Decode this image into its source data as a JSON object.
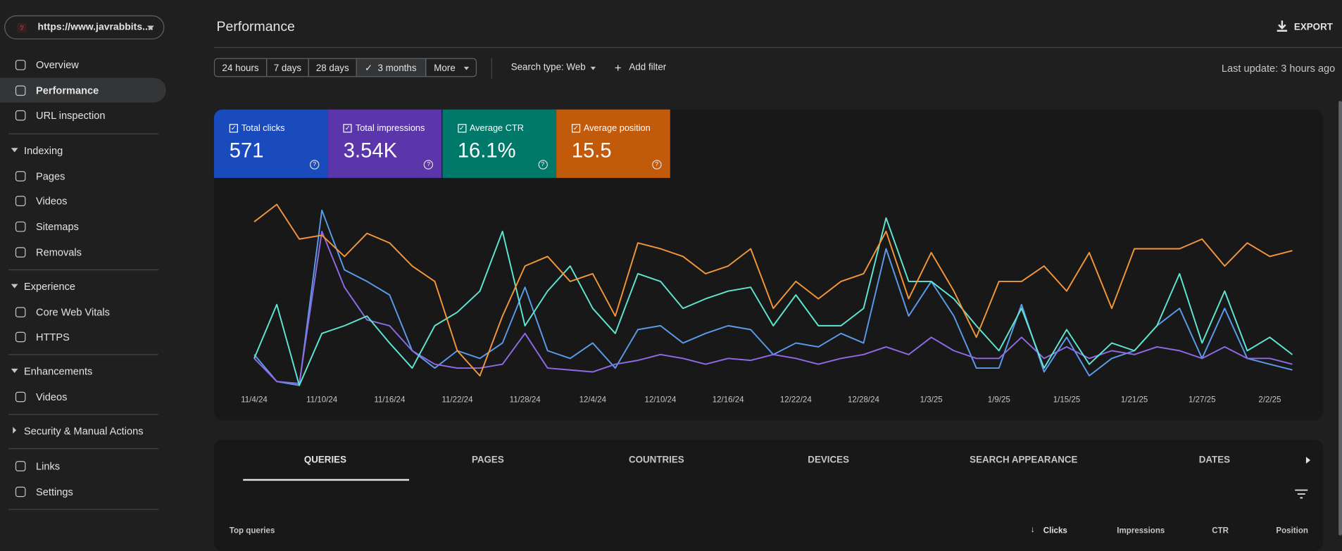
{
  "sidebar": {
    "property": "https://www.javrabbits....",
    "nav": [
      "Overview",
      "Performance",
      "URL inspection"
    ],
    "sections": [
      {
        "title": "Indexing",
        "items": [
          "Pages",
          "Videos",
          "Sitemaps",
          "Removals"
        ]
      },
      {
        "title": "Experience",
        "items": [
          "Core Web Vitals",
          "HTTPS"
        ]
      },
      {
        "title": "Enhancements",
        "items": [
          "Videos"
        ]
      },
      {
        "title": "Security & Manual Actions",
        "items": []
      }
    ],
    "footer_nav": [
      "Links",
      "Settings"
    ]
  },
  "header": {
    "title": "Performance",
    "export": "EXPORT"
  },
  "filters": {
    "ranges": [
      "24 hours",
      "7 days",
      "28 days",
      "3 months"
    ],
    "more": "More",
    "search_type": "Search type: Web",
    "add_filter": "Add filter",
    "last_update": "Last update: 3 hours ago"
  },
  "chart_data": {
    "type": "line",
    "ylim": [
      0,
      100
    ],
    "categories": [
      "11/4/24",
      null,
      null,
      "11/10/24",
      null,
      null,
      "11/16/24",
      null,
      null,
      "11/22/24",
      null,
      null,
      "11/28/24",
      null,
      null,
      "12/4/24",
      null,
      null,
      "12/10/24",
      null,
      null,
      "12/16/24",
      null,
      null,
      "12/22/24",
      null,
      null,
      "12/28/24",
      null,
      null,
      "1/3/25",
      null,
      null,
      "1/9/25",
      null,
      null,
      "1/15/25",
      null,
      null,
      "1/21/25",
      null,
      null,
      "1/27/25",
      null,
      null,
      "2/2/25",
      null
    ],
    "series": [
      {
        "name": "Total clicks",
        "summary": "571",
        "card_color": "#1a4bbd",
        "color": "#5a9bea",
        "values": [
          18,
          4,
          2,
          93,
          62,
          56,
          49,
          20,
          11,
          20,
          16,
          24,
          53,
          20,
          16,
          24,
          11,
          31,
          33,
          24,
          29,
          33,
          31,
          18,
          24,
          22,
          29,
          24,
          73,
          38,
          56,
          38,
          11,
          11,
          44,
          9,
          27,
          7,
          16,
          20,
          33,
          42,
          16,
          42,
          16,
          13,
          10
        ]
      },
      {
        "name": "Total impressions",
        "summary": "3.54K",
        "card_color": "#5b36ab",
        "color": "#8f6ae6",
        "values": [
          16,
          4,
          3,
          82,
          53,
          36,
          33,
          20,
          13,
          11,
          11,
          13,
          29,
          11,
          10,
          9,
          13,
          15,
          18,
          16,
          13,
          16,
          15,
          18,
          16,
          13,
          16,
          18,
          22,
          18,
          27,
          20,
          16,
          16,
          27,
          16,
          22,
          16,
          20,
          18,
          22,
          20,
          16,
          22,
          16,
          16,
          13
        ]
      },
      {
        "name": "Average CTR",
        "summary": "16.1%",
        "card_color": "#00796b",
        "color": "#5fe6d2",
        "values": [
          16,
          44,
          2,
          29,
          33,
          38,
          24,
          11,
          33,
          40,
          51,
          82,
          33,
          51,
          64,
          42,
          29,
          60,
          56,
          42,
          47,
          51,
          53,
          33,
          49,
          33,
          33,
          42,
          89,
          56,
          56,
          47,
          33,
          20,
          42,
          11,
          31,
          13,
          24,
          20,
          33,
          60,
          24,
          51,
          20,
          27,
          18
        ]
      },
      {
        "name": "Average position",
        "summary": "15.5",
        "card_color": "#c15b0b",
        "color": "#f3963a",
        "values": [
          87,
          96,
          78,
          80,
          69,
          81,
          76,
          64,
          56,
          20,
          7,
          38,
          64,
          69,
          56,
          60,
          38,
          76,
          73,
          69,
          60,
          64,
          73,
          42,
          56,
          47,
          56,
          60,
          82,
          47,
          71,
          51,
          27,
          56,
          56,
          64,
          51,
          71,
          42,
          73,
          73,
          73,
          78,
          64,
          76,
          69,
          72
        ]
      }
    ]
  },
  "table": {
    "tabs": [
      "QUERIES",
      "PAGES",
      "COUNTRIES",
      "DEVICES",
      "SEARCH APPEARANCE",
      "DATES"
    ],
    "columns": [
      "Top queries",
      "Clicks",
      "Impressions",
      "CTR",
      "Position"
    ]
  }
}
